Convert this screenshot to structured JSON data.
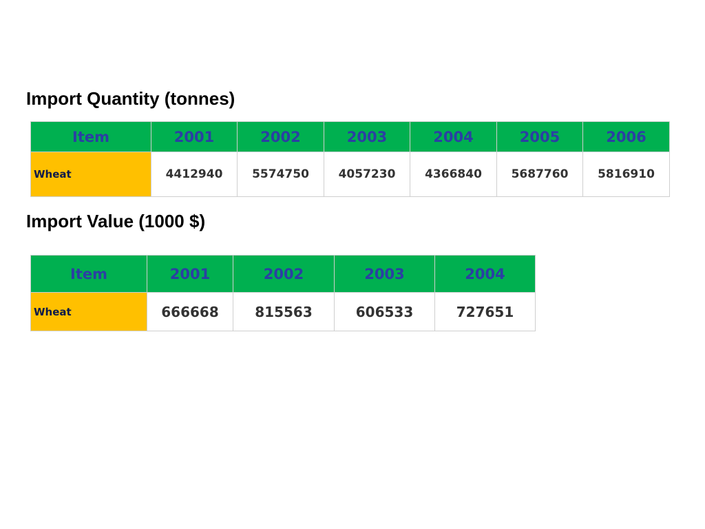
{
  "sections": [
    {
      "title": "Import Quantity (tonnes)",
      "table": {
        "header": [
          "Item",
          "2001",
          "2002",
          "2003",
          "2004",
          "2005",
          "2006"
        ],
        "rows": [
          [
            "Wheat",
            4412940,
            5574750,
            4057230,
            4366840,
            5687760,
            5816910
          ]
        ]
      }
    },
    {
      "title": "Import Value (1000 $)",
      "table": {
        "header": [
          "Item",
          "2001",
          "2002",
          "2003",
          "2004"
        ],
        "rows": [
          [
            "Wheat",
            666668,
            815563,
            606533,
            727651
          ]
        ]
      }
    }
  ]
}
